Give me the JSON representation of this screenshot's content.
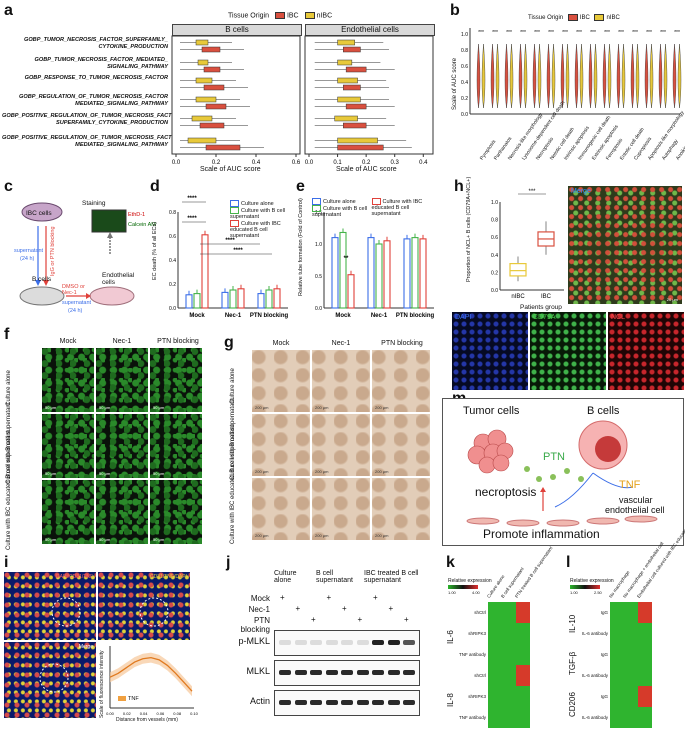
{
  "panels": {
    "a": "a",
    "b": "b",
    "c": "c",
    "d": "d",
    "e": "e",
    "f": "f",
    "g": "g",
    "h": "h",
    "i": "i",
    "j": "j",
    "k": "k",
    "l": "l",
    "m": "m"
  },
  "colors": {
    "ibc": "#d9503f",
    "nibc": "#e8c93a",
    "blue": "#3b6ee8",
    "green": "#45b34a",
    "red": "#e0413a"
  },
  "a": {
    "legend_title": "Tissue Origin",
    "legend_ibc": "IBC",
    "legend_nibc": "nIBC",
    "facet_b": "B cells",
    "facet_endo": "Endothelial cells",
    "pathways": [
      [
        "GOBP_TUMOR_NECROSIS_FACTOR_SUPERFAMILY_",
        "CYTOKINE_PRODUCTION"
      ],
      [
        "GOBP_TUMOR_NECROSIS_FACTOR_MEDIATED_",
        "SIGNALING_PATHWAY"
      ],
      [
        "GOBP_RESPONSE_TO_TUMOR_NECROSIS_FACTOR",
        ""
      ],
      [
        "GOBP_REGULATION_OF_TUMOR_NECROSIS_FACTOR",
        "MEDIATED_SIGNALING_PATHWAY"
      ],
      [
        "GOBP_POSITIVE_REGULATION_OF_TUMOR_NECROSIS_FACTOR",
        "SUPERFAMILY_CYTOKINE_PRODUCTION"
      ],
      [
        "GOBP_POSITIVE_REGULATION_OF_TUMOR_NECROSIS_FACTOR_",
        "MEDIATED_SIGNALING_PATHWAY"
      ]
    ],
    "sig_b": [
      "***",
      "***",
      "***",
      "***",
      "***",
      "***"
    ],
    "sig_endo": [
      "***",
      "***",
      "***",
      "***",
      "***",
      "ns"
    ],
    "xticks_b": [
      "0.0",
      "0.2",
      "0.4",
      "0.6"
    ],
    "xticks_endo": [
      "0.0",
      "0.1",
      "0.2",
      "0.3",
      "0.4"
    ],
    "xlabel": "Scale of AUC score"
  },
  "b": {
    "legend_title": "Tissue Origin",
    "legend_ibc": "IBC",
    "legend_nibc": "nIBC",
    "ylabel": "Scale of AUC score",
    "yticks": [
      "0.0",
      "0.2",
      "0.4",
      "0.6",
      "0.8",
      "1.0"
    ],
    "sig": "***",
    "categories": [
      "Pyroptosis",
      "Parthanatos",
      "Necrosis-like morphology",
      "Lysosome-dependent cell death",
      "Necroptosis",
      "Netotic cell death",
      "Intrinsic apoptosis",
      "Immunogenic cell death",
      "Extrinsic apoptosis",
      "Ferroptosis",
      "Entotic cell death",
      "Cuproptosis",
      "Apoptosis-like morphology",
      "Autophagy",
      "Anoikis"
    ]
  },
  "c": {
    "ibc_cells": "IBC cells",
    "staining": "Staining",
    "ethd": "EthD-1",
    "calcein": "Calcein AM",
    "supernatant1": "supernatant",
    "h24a": "(24 h)",
    "igg": "IgG or PTN blocking",
    "b_cells": "B cells",
    "dmso": "DMSO or Nec-1",
    "supernatant2": "supernatant",
    "h24b": "(24 h)",
    "endo": "Endothelial cells"
  },
  "d": {
    "ylabel": "EC death (% of all ECs)",
    "yticks": [
      "0.0",
      "0.2",
      "0.4",
      "0.6",
      "0.8"
    ],
    "groups": [
      "Mock",
      "Nec-1",
      "PTN blocking"
    ],
    "legend": [
      "Culture alone",
      "Culture with B cell supernatant",
      "Culture with IBC educated B cell supernatant"
    ],
    "sig": "****"
  },
  "e": {
    "ylabel": "Relative tube formation (Fold of Control)",
    "yticks": [
      "0.0",
      "0.5",
      "1.0",
      "1.5"
    ],
    "groups": [
      "Mock",
      "Nec-1",
      "PTN blocking"
    ],
    "legend": [
      "Culture alone",
      "Culture with B cell supernatant",
      "Culture with IBC educated B cell supernatant"
    ],
    "sig": "**"
  },
  "f": {
    "cols": [
      "Mock",
      "Nec-1",
      "PTN blocking"
    ],
    "rows": [
      "Culture alone",
      "Culture with B cell supernatant",
      "Culture with IBC educated B cell supernatant"
    ],
    "scale": "50 μm"
  },
  "g": {
    "cols": [
      "Mock",
      "Nec-1",
      "PTN blocking"
    ],
    "rows": [
      "Culture alone",
      "Culture with B cell supernatant",
      "Culture with IBC educated B cell supernatant"
    ],
    "scale": "200 μm"
  },
  "h": {
    "ylabel": "Proportion of NCL+ B cells (CD79A+NCL+)",
    "yticks": [
      "0.0",
      "0.2",
      "0.4",
      "0.6",
      "0.8",
      "1.0"
    ],
    "groups": [
      "nIBC",
      "IBC"
    ],
    "xlabel": "Patients group",
    "sig": "***",
    "merge": "Merge",
    "dapi": "DAPI",
    "cd79a": "CD79A",
    "ncl": "NCL",
    "scale": "20 μm"
  },
  "i": {
    "ihc_label": "DAPI/CD31/TNF",
    "cd31_label": "CD31/TNF/DAPI",
    "merge": "Merge",
    "ylabel": "Scale of fluorescence intensity",
    "xlabel": "Distance from vessels (mm)",
    "legend": "TNF",
    "xticks": [
      "0.00",
      "0.02",
      "0.04",
      "0.06",
      "0.08",
      "0.10"
    ]
  },
  "j": {
    "col_headers": [
      "Culture alone",
      "B cell supernatant",
      "IBC treated B cell supernatant"
    ],
    "row_labels": [
      "Mock",
      "Nec-1",
      "PTN blocking"
    ],
    "plus_matrix": [
      [
        "+",
        "",
        "",
        "+",
        "",
        "",
        "+",
        "",
        ""
      ],
      [
        "",
        "+",
        "",
        "",
        "+",
        "",
        "",
        "+",
        ""
      ],
      [
        "",
        "",
        "+",
        "",
        "",
        "+",
        "",
        "",
        "+"
      ]
    ],
    "blots": [
      "p-MLKL",
      "MLKL",
      "Actin"
    ]
  },
  "k": {
    "legend_title": "Relative expression",
    "legend_min": "1.00",
    "legend_max": "4.00",
    "cols": [
      "Culture alone",
      "B cell supernatant",
      "PTN treated B cell supernatant"
    ],
    "groups": [
      "IL-6",
      "IL-8"
    ],
    "rows": [
      "shCtrl",
      "shRIPK3",
      "TNF antibody",
      "shCtrl",
      "shRIPK3",
      "TNF antibody"
    ]
  },
  "l": {
    "legend_title": "Relative expression",
    "legend_min": "1.00",
    "legend_max": "2.50",
    "cols": [
      "No macrophage",
      "No macrophage + endothelial cell",
      "Endothelial cell cultured with IBC educated B cell sup"
    ],
    "groups": [
      "IL-10",
      "TGF-β",
      "CD206"
    ],
    "rows": [
      "IgG",
      "IL-6 antibody",
      "IgG",
      "IL-6 antibody",
      "IgG",
      "IL-6 antibody"
    ]
  },
  "m": {
    "tumor": "Tumor cells",
    "bcells": "B cells",
    "ptn": "PTN",
    "necroptosis": "necroptosis",
    "tnf": "TNF",
    "vascular": "vascular",
    "endo": "endothelial cell",
    "inflam": "Promote inflammation"
  }
}
